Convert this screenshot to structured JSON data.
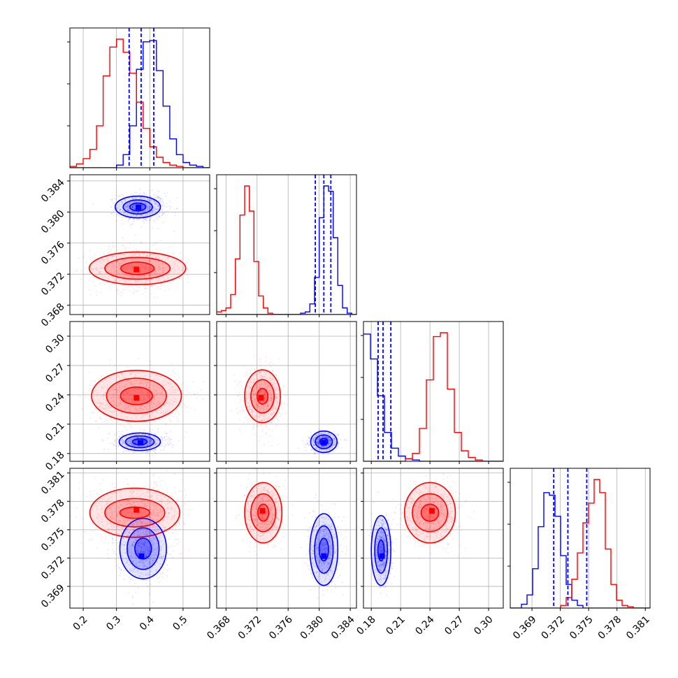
{
  "colors": {
    "blue": "#0000ff",
    "red": "#ff0000",
    "grid": "#b0b0b0"
  },
  "chart_data": {
    "type": "corner",
    "params": [
      {
        "range": [
          0.16,
          0.58
        ],
        "ticks": [
          0.2,
          0.3,
          0.4,
          0.5
        ],
        "tick_labels": [
          "0.2",
          "0.3",
          "0.4",
          "0.5"
        ]
      },
      {
        "range": [
          0.3668,
          0.3848
        ],
        "ticks": [
          0.368,
          0.372,
          0.376,
          0.38,
          0.384
        ],
        "tick_labels": [
          "0.368",
          "0.372",
          "0.376",
          "0.380",
          "0.384"
        ]
      },
      {
        "range": [
          0.172,
          0.315
        ],
        "ticks": [
          0.18,
          0.21,
          0.24,
          0.27,
          0.3
        ],
        "tick_labels": [
          "0.18",
          "0.21",
          "0.24",
          "0.27",
          "0.30"
        ]
      },
      {
        "range": [
          0.3667,
          0.3815
        ],
        "ticks": [
          0.369,
          0.372,
          0.375,
          0.378,
          0.381
        ],
        "tick_labels": [
          "0.369",
          "0.372",
          "0.375",
          "0.378",
          "0.381"
        ]
      }
    ],
    "series": [
      {
        "color": "blue",
        "quantiles": [
          [
            0.338,
            0.374,
            0.412
          ],
          [
            0.3795,
            0.3806,
            0.3815
          ],
          [
            0.187,
            0.192,
            0.2
          ],
          [
            0.3713,
            0.3728,
            0.3748
          ]
        ],
        "histograms": [
          {
            "edges": [
              0.16,
              0.58
            ],
            "counts": [
              0,
              0,
              0,
              0,
              0,
              0,
              0,
              2,
              10,
              32,
              75,
              96,
              97,
              74,
              47,
              22,
              10,
              4,
              2,
              1,
              0
            ]
          },
          {
            "edges": [
              0.3668,
              0.3848
            ],
            "counts": [
              0,
              0,
              0,
              0,
              0,
              0,
              0,
              0,
              0,
              0,
              0,
              0,
              0,
              0,
              0,
              0,
              0,
              0,
              1,
              2,
              8,
              28,
              73,
              97,
              93,
              58,
              22,
              5,
              1,
              0
            ]
          },
          {
            "edges": [
              0.172,
              0.315
            ],
            "counts": [
              97,
              78,
              50,
              22,
              10,
              4,
              2,
              1,
              0,
              0,
              0,
              0,
              0,
              0,
              0,
              0,
              0,
              0,
              0,
              0
            ]
          },
          {
            "edges": [
              0.3667,
              0.3815
            ],
            "counts": [
              0,
              0,
              3,
              10,
              30,
              62,
              88,
              86,
              70,
              40,
              18,
              6,
              2,
              0,
              0,
              0,
              0,
              0,
              0,
              0,
              0,
              0,
              0,
              0,
              0
            ]
          }
        ]
      },
      {
        "color": "red",
        "histograms": [
          {
            "edges": [
              0.16,
              0.58
            ],
            "counts": [
              1,
              3,
              7,
              14,
              32,
              70,
              92,
              98,
              88,
              72,
              50,
              30,
              16,
              8,
              4,
              2,
              1,
              0,
              0,
              0,
              0
            ]
          },
          {
            "edges": [
              0.3668,
              0.3848
            ],
            "counts": [
              2,
              3,
              5,
              15,
              42,
              75,
              97,
              78,
              40,
              14,
              5,
              1,
              0,
              0,
              0,
              0,
              0,
              0,
              0,
              0,
              0,
              0,
              0,
              0,
              0,
              0,
              0,
              0,
              0,
              0
            ]
          },
          {
            "edges": [
              0.172,
              0.315
            ],
            "counts": [
              0,
              0,
              0,
              0,
              0,
              0,
              2,
              6,
              25,
              62,
              95,
              98,
              55,
              22,
              8,
              3,
              1,
              0,
              0,
              0
            ]
          },
          {
            "edges": [
              0.3667,
              0.3815
            ],
            "counts": [
              0,
              0,
              0,
              0,
              0,
              0,
              0,
              0,
              0,
              2,
              8,
              22,
              42,
              65,
              80,
              98,
              88,
              45,
              18,
              6,
              2,
              1,
              0,
              0,
              0
            ]
          }
        ]
      }
    ],
    "clouds": [
      {
        "panel": [
          1,
          0
        ],
        "color": "blue",
        "center": [
          0.375,
          0.3806
        ],
        "spread": [
          0.036,
          0.00092
        ]
      },
      {
        "panel": [
          1,
          0
        ],
        "color": "red",
        "center": [
          0.36,
          0.3727
        ],
        "spread": [
          0.068,
          0.0014
        ]
      },
      {
        "panel": [
          2,
          0
        ],
        "color": "red",
        "center": [
          0.36,
          0.237
        ],
        "spread": [
          0.07,
          0.014
        ]
      },
      {
        "panel": [
          2,
          0
        ],
        "color": "blue",
        "center": [
          0.375,
          0.192
        ],
        "spread": [
          0.037,
          0.0045
        ]
      },
      {
        "panel": [
          2,
          1
        ],
        "color": "red",
        "center": [
          0.3727,
          0.237
        ],
        "spread": [
          0.0012,
          0.014
        ]
      },
      {
        "panel": [
          2,
          1
        ],
        "color": "blue",
        "center": [
          0.3806,
          0.192
        ],
        "spread": [
          0.0009,
          0.0045
        ]
      },
      {
        "panel": [
          3,
          0
        ],
        "color": "red",
        "center": [
          0.36,
          0.3768
        ],
        "spread": [
          0.068,
          0.0016
        ]
      },
      {
        "panel": [
          3,
          0
        ],
        "color": "blue",
        "center": [
          0.375,
          0.3728
        ],
        "spread": [
          0.036,
          0.0016
        ]
      },
      {
        "panel": [
          3,
          1
        ],
        "color": "red",
        "center": [
          0.3728,
          0.3768
        ],
        "spread": [
          0.0012,
          0.0016
        ]
      },
      {
        "panel": [
          3,
          1
        ],
        "color": "blue",
        "center": [
          0.3806,
          0.373
        ],
        "spread": [
          0.0009,
          0.0017
        ]
      },
      {
        "panel": [
          3,
          2
        ],
        "color": "red",
        "center": [
          0.242,
          0.3768
        ],
        "spread": [
          0.014,
          0.0015
        ]
      },
      {
        "panel": [
          3,
          2
        ],
        "color": "blue",
        "center": [
          0.192,
          0.3728
        ],
        "spread": [
          0.0045,
          0.0016
        ]
      }
    ],
    "contours": [
      {
        "panel": [
          1,
          0
        ],
        "color": "blue",
        "center": [
          0.364,
          0.38065
        ],
        "radii": [
          [
            0.068,
            0.0014
          ],
          [
            0.044,
            0.0009
          ],
          [
            0.024,
            0.0005
          ]
        ],
        "peak": [
          0.366,
          0.3806
        ]
      },
      {
        "panel": [
          1,
          0
        ],
        "color": "red",
        "center": [
          0.363,
          0.37275
        ],
        "radii": [
          [
            0.145,
            0.0021
          ],
          [
            0.098,
            0.0014
          ],
          [
            0.05,
            0.0008
          ]
        ],
        "peak": [
          0.36,
          0.3726
        ]
      },
      {
        "panel": [
          2,
          0
        ],
        "color": "red",
        "center": [
          0.36,
          0.239
        ],
        "radii": [
          [
            0.135,
            0.026
          ],
          [
            0.09,
            0.018
          ],
          [
            0.048,
            0.009
          ]
        ],
        "peak": [
          0.36,
          0.237
        ]
      },
      {
        "panel": [
          2,
          0
        ],
        "color": "blue",
        "center": [
          0.37,
          0.192
        ],
        "radii": [
          [
            0.062,
            0.009
          ],
          [
            0.043,
            0.006
          ],
          [
            0.022,
            0.003
          ]
        ],
        "peak": [
          0.372,
          0.191
        ]
      },
      {
        "panel": [
          2,
          1
        ],
        "color": "red",
        "center": [
          0.3727,
          0.2385
        ],
        "radii": [
          [
            0.0023,
            0.027
          ],
          [
            0.0015,
            0.017
          ],
          [
            0.0007,
            0.008
          ]
        ],
        "peak": [
          0.3725,
          0.237
        ]
      },
      {
        "panel": [
          2,
          1
        ],
        "color": "blue",
        "center": [
          0.3806,
          0.192
        ],
        "radii": [
          [
            0.0017,
            0.011
          ],
          [
            0.0011,
            0.007
          ],
          [
            0.0005,
            0.0035
          ]
        ],
        "peak": [
          0.3806,
          0.191
        ]
      },
      {
        "panel": [
          3,
          0
        ],
        "color": "red",
        "center": [
          0.355,
          0.3768
        ],
        "radii": [
          [
            0.135,
            0.0026
          ],
          [
            0.09,
            0.0015
          ],
          [
            0.045,
            0.0006
          ]
        ],
        "peak": [
          0.36,
          0.3771
        ]
      },
      {
        "panel": [
          3,
          0
        ],
        "color": "blue",
        "center": [
          0.38,
          0.373
        ],
        "radii": [
          [
            0.07,
            0.0032
          ],
          [
            0.048,
            0.0022
          ],
          [
            0.025,
            0.0011
          ]
        ],
        "peak": [
          0.375,
          0.3722
        ]
      },
      {
        "panel": [
          3,
          1
        ],
        "color": "red",
        "center": [
          0.3728,
          0.3768
        ],
        "radii": [
          [
            0.0024,
            0.0032
          ],
          [
            0.0016,
            0.002
          ],
          [
            0.0007,
            0.0009
          ]
        ],
        "peak": [
          0.3727,
          0.377
        ]
      },
      {
        "panel": [
          3,
          1
        ],
        "color": "blue",
        "center": [
          0.3806,
          0.3729
        ],
        "radii": [
          [
            0.0018,
            0.0038
          ],
          [
            0.0012,
            0.0025
          ],
          [
            0.0006,
            0.0012
          ]
        ],
        "peak": [
          0.3806,
          0.3722
        ]
      },
      {
        "panel": [
          3,
          2
        ],
        "color": "red",
        "center": [
          0.24,
          0.3768
        ],
        "radii": [
          [
            0.026,
            0.0032
          ],
          [
            0.018,
            0.002
          ],
          [
            0.009,
            0.0009
          ]
        ],
        "peak": [
          0.242,
          0.377
        ]
      },
      {
        "panel": [
          3,
          2
        ],
        "color": "blue",
        "center": [
          0.19,
          0.3728
        ],
        "radii": [
          [
            0.01,
            0.0037
          ],
          [
            0.0065,
            0.0024
          ],
          [
            0.0032,
            0.0011
          ]
        ],
        "peak": [
          0.191,
          0.3722
        ]
      }
    ]
  }
}
